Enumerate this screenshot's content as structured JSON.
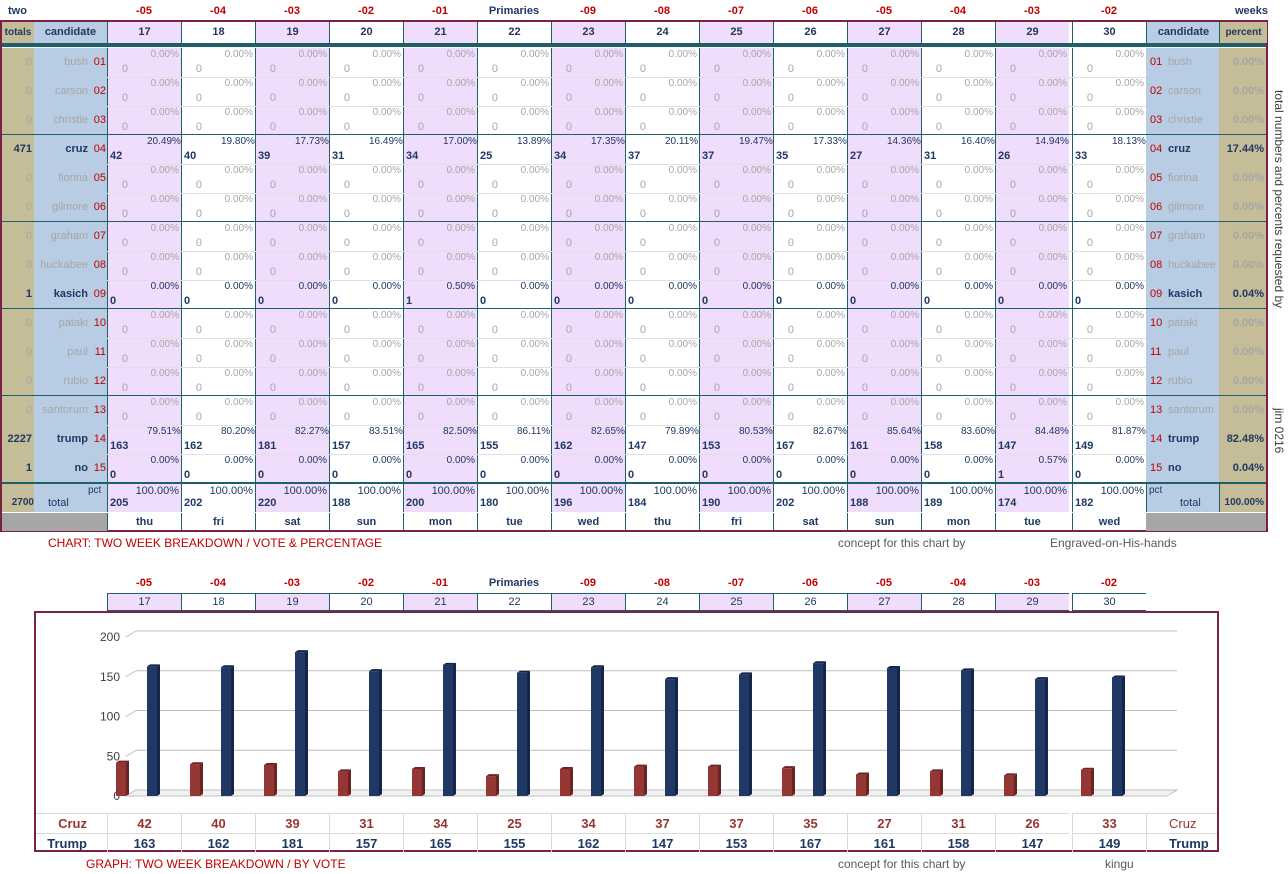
{
  "top": {
    "left_label": "two",
    "right_label": "weeks",
    "center_label": "Primaries",
    "day_offsets": [
      "-05",
      "-04",
      "-03",
      "-02",
      "-01",
      "Primaries",
      "-09",
      "-08",
      "-07",
      "-06",
      "-05",
      "-04",
      "-03",
      "-02"
    ],
    "dates": [
      "17",
      "18",
      "19",
      "20",
      "21",
      "22",
      "23",
      "24",
      "25",
      "26",
      "27",
      "28",
      "29",
      "30"
    ],
    "weekdays": [
      "thu",
      "fri",
      "sat",
      "sun",
      "mon",
      "tue",
      "wed",
      "thu",
      "fri",
      "sat",
      "sun",
      "mon",
      "tue",
      "wed"
    ]
  },
  "table": {
    "totals_header": "totals",
    "candidate_header": "candidate",
    "percent_header": "percent",
    "pct_label": "pct",
    "total_label": "total",
    "grand_total": "2700",
    "grand_percent": "100.00%",
    "daily_totals": [
      "205",
      "202",
      "220",
      "188",
      "200",
      "180",
      "196",
      "184",
      "190",
      "202",
      "188",
      "189",
      "174",
      "182"
    ],
    "daily_total_pct": "100.00%",
    "candidates": [
      {
        "num": "01",
        "name": "bush",
        "total": "0",
        "pct": "0.00%",
        "active": false,
        "votes": [
          "0",
          "0",
          "0",
          "0",
          "0",
          "0",
          "0",
          "0",
          "0",
          "0",
          "0",
          "0",
          "0",
          "0"
        ],
        "pcts": [
          "0.00%",
          "0.00%",
          "0.00%",
          "0.00%",
          "0.00%",
          "0.00%",
          "0.00%",
          "0.00%",
          "0.00%",
          "0.00%",
          "0.00%",
          "0.00%",
          "0.00%",
          "0.00%"
        ]
      },
      {
        "num": "02",
        "name": "carson",
        "total": "0",
        "pct": "0.00%",
        "active": false,
        "votes": [
          "0",
          "0",
          "0",
          "0",
          "0",
          "0",
          "0",
          "0",
          "0",
          "0",
          "0",
          "0",
          "0",
          "0"
        ],
        "pcts": [
          "0.00%",
          "0.00%",
          "0.00%",
          "0.00%",
          "0.00%",
          "0.00%",
          "0.00%",
          "0.00%",
          "0.00%",
          "0.00%",
          "0.00%",
          "0.00%",
          "0.00%",
          "0.00%"
        ]
      },
      {
        "num": "03",
        "name": "christie",
        "total": "0",
        "pct": "0.00%",
        "active": false,
        "votes": [
          "0",
          "0",
          "0",
          "0",
          "0",
          "0",
          "0",
          "0",
          "0",
          "0",
          "0",
          "0",
          "0",
          "0"
        ],
        "pcts": [
          "0.00%",
          "0.00%",
          "0.00%",
          "0.00%",
          "0.00%",
          "0.00%",
          "0.00%",
          "0.00%",
          "0.00%",
          "0.00%",
          "0.00%",
          "0.00%",
          "0.00%",
          "0.00%"
        ]
      },
      {
        "num": "04",
        "name": "cruz",
        "total": "471",
        "pct": "17.44%",
        "active": true,
        "votes": [
          "42",
          "40",
          "39",
          "31",
          "34",
          "25",
          "34",
          "37",
          "37",
          "35",
          "27",
          "31",
          "26",
          "33"
        ],
        "pcts": [
          "20.49%",
          "19.80%",
          "17.73%",
          "16.49%",
          "17.00%",
          "13.89%",
          "17.35%",
          "20.11%",
          "19.47%",
          "17.33%",
          "14.36%",
          "16.40%",
          "14.94%",
          "18.13%"
        ]
      },
      {
        "num": "05",
        "name": "fiorina",
        "total": "0",
        "pct": "0.00%",
        "active": false,
        "votes": [
          "0",
          "0",
          "0",
          "0",
          "0",
          "0",
          "0",
          "0",
          "0",
          "0",
          "0",
          "0",
          "0",
          "0"
        ],
        "pcts": [
          "0.00%",
          "0.00%",
          "0.00%",
          "0.00%",
          "0.00%",
          "0.00%",
          "0.00%",
          "0.00%",
          "0.00%",
          "0.00%",
          "0.00%",
          "0.00%",
          "0.00%",
          "0.00%"
        ]
      },
      {
        "num": "06",
        "name": "gilmore",
        "total": "0",
        "pct": "0.00%",
        "active": false,
        "votes": [
          "0",
          "0",
          "0",
          "0",
          "0",
          "0",
          "0",
          "0",
          "0",
          "0",
          "0",
          "0",
          "0",
          "0"
        ],
        "pcts": [
          "0.00%",
          "0.00%",
          "0.00%",
          "0.00%",
          "0.00%",
          "0.00%",
          "0.00%",
          "0.00%",
          "0.00%",
          "0.00%",
          "0.00%",
          "0.00%",
          "0.00%",
          "0.00%"
        ]
      },
      {
        "num": "07",
        "name": "graham",
        "total": "0",
        "pct": "0.00%",
        "active": false,
        "votes": [
          "0",
          "0",
          "0",
          "0",
          "0",
          "0",
          "0",
          "0",
          "0",
          "0",
          "0",
          "0",
          "0",
          "0"
        ],
        "pcts": [
          "0.00%",
          "0.00%",
          "0.00%",
          "0.00%",
          "0.00%",
          "0.00%",
          "0.00%",
          "0.00%",
          "0.00%",
          "0.00%",
          "0.00%",
          "0.00%",
          "0.00%",
          "0.00%"
        ]
      },
      {
        "num": "08",
        "name": "huckabee",
        "total": "0",
        "pct": "0.00%",
        "active": false,
        "votes": [
          "0",
          "0",
          "0",
          "0",
          "0",
          "0",
          "0",
          "0",
          "0",
          "0",
          "0",
          "0",
          "0",
          "0"
        ],
        "pcts": [
          "0.00%",
          "0.00%",
          "0.00%",
          "0.00%",
          "0.00%",
          "0.00%",
          "0.00%",
          "0.00%",
          "0.00%",
          "0.00%",
          "0.00%",
          "0.00%",
          "0.00%",
          "0.00%"
        ]
      },
      {
        "num": "09",
        "name": "kasich",
        "total": "1",
        "pct": "0.04%",
        "active": true,
        "votes": [
          "0",
          "0",
          "0",
          "0",
          "1",
          "0",
          "0",
          "0",
          "0",
          "0",
          "0",
          "0",
          "0",
          "0"
        ],
        "pcts": [
          "0.00%",
          "0.00%",
          "0.00%",
          "0.00%",
          "0.50%",
          "0.00%",
          "0.00%",
          "0.00%",
          "0.00%",
          "0.00%",
          "0.00%",
          "0.00%",
          "0.00%",
          "0.00%"
        ]
      },
      {
        "num": "10",
        "name": "pataki",
        "total": "0",
        "pct": "0.00%",
        "active": false,
        "votes": [
          "0",
          "0",
          "0",
          "0",
          "0",
          "0",
          "0",
          "0",
          "0",
          "0",
          "0",
          "0",
          "0",
          "0"
        ],
        "pcts": [
          "0.00%",
          "0.00%",
          "0.00%",
          "0.00%",
          "0.00%",
          "0.00%",
          "0.00%",
          "0.00%",
          "0.00%",
          "0.00%",
          "0.00%",
          "0.00%",
          "0.00%",
          "0.00%"
        ]
      },
      {
        "num": "11",
        "name": "paul",
        "total": "0",
        "pct": "0.00%",
        "active": false,
        "votes": [
          "0",
          "0",
          "0",
          "0",
          "0",
          "0",
          "0",
          "0",
          "0",
          "0",
          "0",
          "0",
          "0",
          "0"
        ],
        "pcts": [
          "0.00%",
          "0.00%",
          "0.00%",
          "0.00%",
          "0.00%",
          "0.00%",
          "0.00%",
          "0.00%",
          "0.00%",
          "0.00%",
          "0.00%",
          "0.00%",
          "0.00%",
          "0.00%"
        ]
      },
      {
        "num": "12",
        "name": "rubio",
        "total": "0",
        "pct": "0.00%",
        "active": false,
        "votes": [
          "0",
          "0",
          "0",
          "0",
          "0",
          "0",
          "0",
          "0",
          "0",
          "0",
          "0",
          "0",
          "0",
          "0"
        ],
        "pcts": [
          "0.00%",
          "0.00%",
          "0.00%",
          "0.00%",
          "0.00%",
          "0.00%",
          "0.00%",
          "0.00%",
          "0.00%",
          "0.00%",
          "0.00%",
          "0.00%",
          "0.00%",
          "0.00%"
        ]
      },
      {
        "num": "13",
        "name": "santorum",
        "total": "0",
        "pct": "0.00%",
        "active": false,
        "votes": [
          "0",
          "0",
          "0",
          "0",
          "0",
          "0",
          "0",
          "0",
          "0",
          "0",
          "0",
          "0",
          "0",
          "0"
        ],
        "pcts": [
          "0.00%",
          "0.00%",
          "0.00%",
          "0.00%",
          "0.00%",
          "0.00%",
          "0.00%",
          "0.00%",
          "0.00%",
          "0.00%",
          "0.00%",
          "0.00%",
          "0.00%",
          "0.00%"
        ]
      },
      {
        "num": "14",
        "name": "trump",
        "total": "2227",
        "pct": "82.48%",
        "active": true,
        "votes": [
          "163",
          "162",
          "181",
          "157",
          "165",
          "155",
          "162",
          "147",
          "153",
          "167",
          "161",
          "158",
          "147",
          "149"
        ],
        "pcts": [
          "79.51%",
          "80.20%",
          "82.27%",
          "83.51%",
          "82.50%",
          "86.11%",
          "82.65%",
          "79.89%",
          "80.53%",
          "82.67%",
          "85.64%",
          "83.60%",
          "84.48%",
          "81.87%"
        ]
      },
      {
        "num": "15",
        "name": "no",
        "total": "1",
        "pct": "0.04%",
        "active": true,
        "votes": [
          "0",
          "0",
          "0",
          "0",
          "0",
          "0",
          "0",
          "0",
          "0",
          "0",
          "0",
          "0",
          "1",
          "0"
        ],
        "pcts": [
          "0.00%",
          "0.00%",
          "0.00%",
          "0.00%",
          "0.00%",
          "0.00%",
          "0.00%",
          "0.00%",
          "0.00%",
          "0.00%",
          "0.00%",
          "0.00%",
          "0.57%",
          "0.00%"
        ]
      }
    ]
  },
  "side_note": {
    "vertical_text": "total numbers and percents requested by",
    "signature": "jim 0216"
  },
  "captions": {
    "chart_title": "CHART: TWO WEEK BREAKDOWN / VOTE & PERCENTAGE",
    "chart_concept": "concept for this chart by",
    "chart_author": "Engraved-on-His-hands",
    "graph_title": "GRAPH: TWO WEEK BREAKDOWN / BY VOTE",
    "graph_concept": "concept for this chart by",
    "graph_author": "kingu"
  },
  "chart_data": {
    "type": "bar",
    "categories": [
      "17",
      "18",
      "19",
      "20",
      "21",
      "22",
      "23",
      "24",
      "25",
      "26",
      "27",
      "28",
      "29",
      "30"
    ],
    "series": [
      {
        "name": "Cruz",
        "values": [
          42,
          40,
          39,
          31,
          34,
          25,
          34,
          37,
          37,
          35,
          27,
          31,
          26,
          33
        ],
        "color": "#943634"
      },
      {
        "name": "Trump",
        "values": [
          163,
          162,
          181,
          157,
          165,
          155,
          162,
          147,
          153,
          167,
          161,
          158,
          147,
          149
        ],
        "color": "#1f3864"
      }
    ],
    "ylim": [
      0,
      200
    ],
    "yticks": [
      "0",
      "50",
      "100",
      "150",
      "200"
    ],
    "grid": true
  },
  "colors": {
    "frame": "#7b2046",
    "accent_red": "#c00000",
    "navy": "#1f3864",
    "pink": "#f0dcfb",
    "tan": "#c4bd97",
    "blue": "#b8cce4"
  }
}
